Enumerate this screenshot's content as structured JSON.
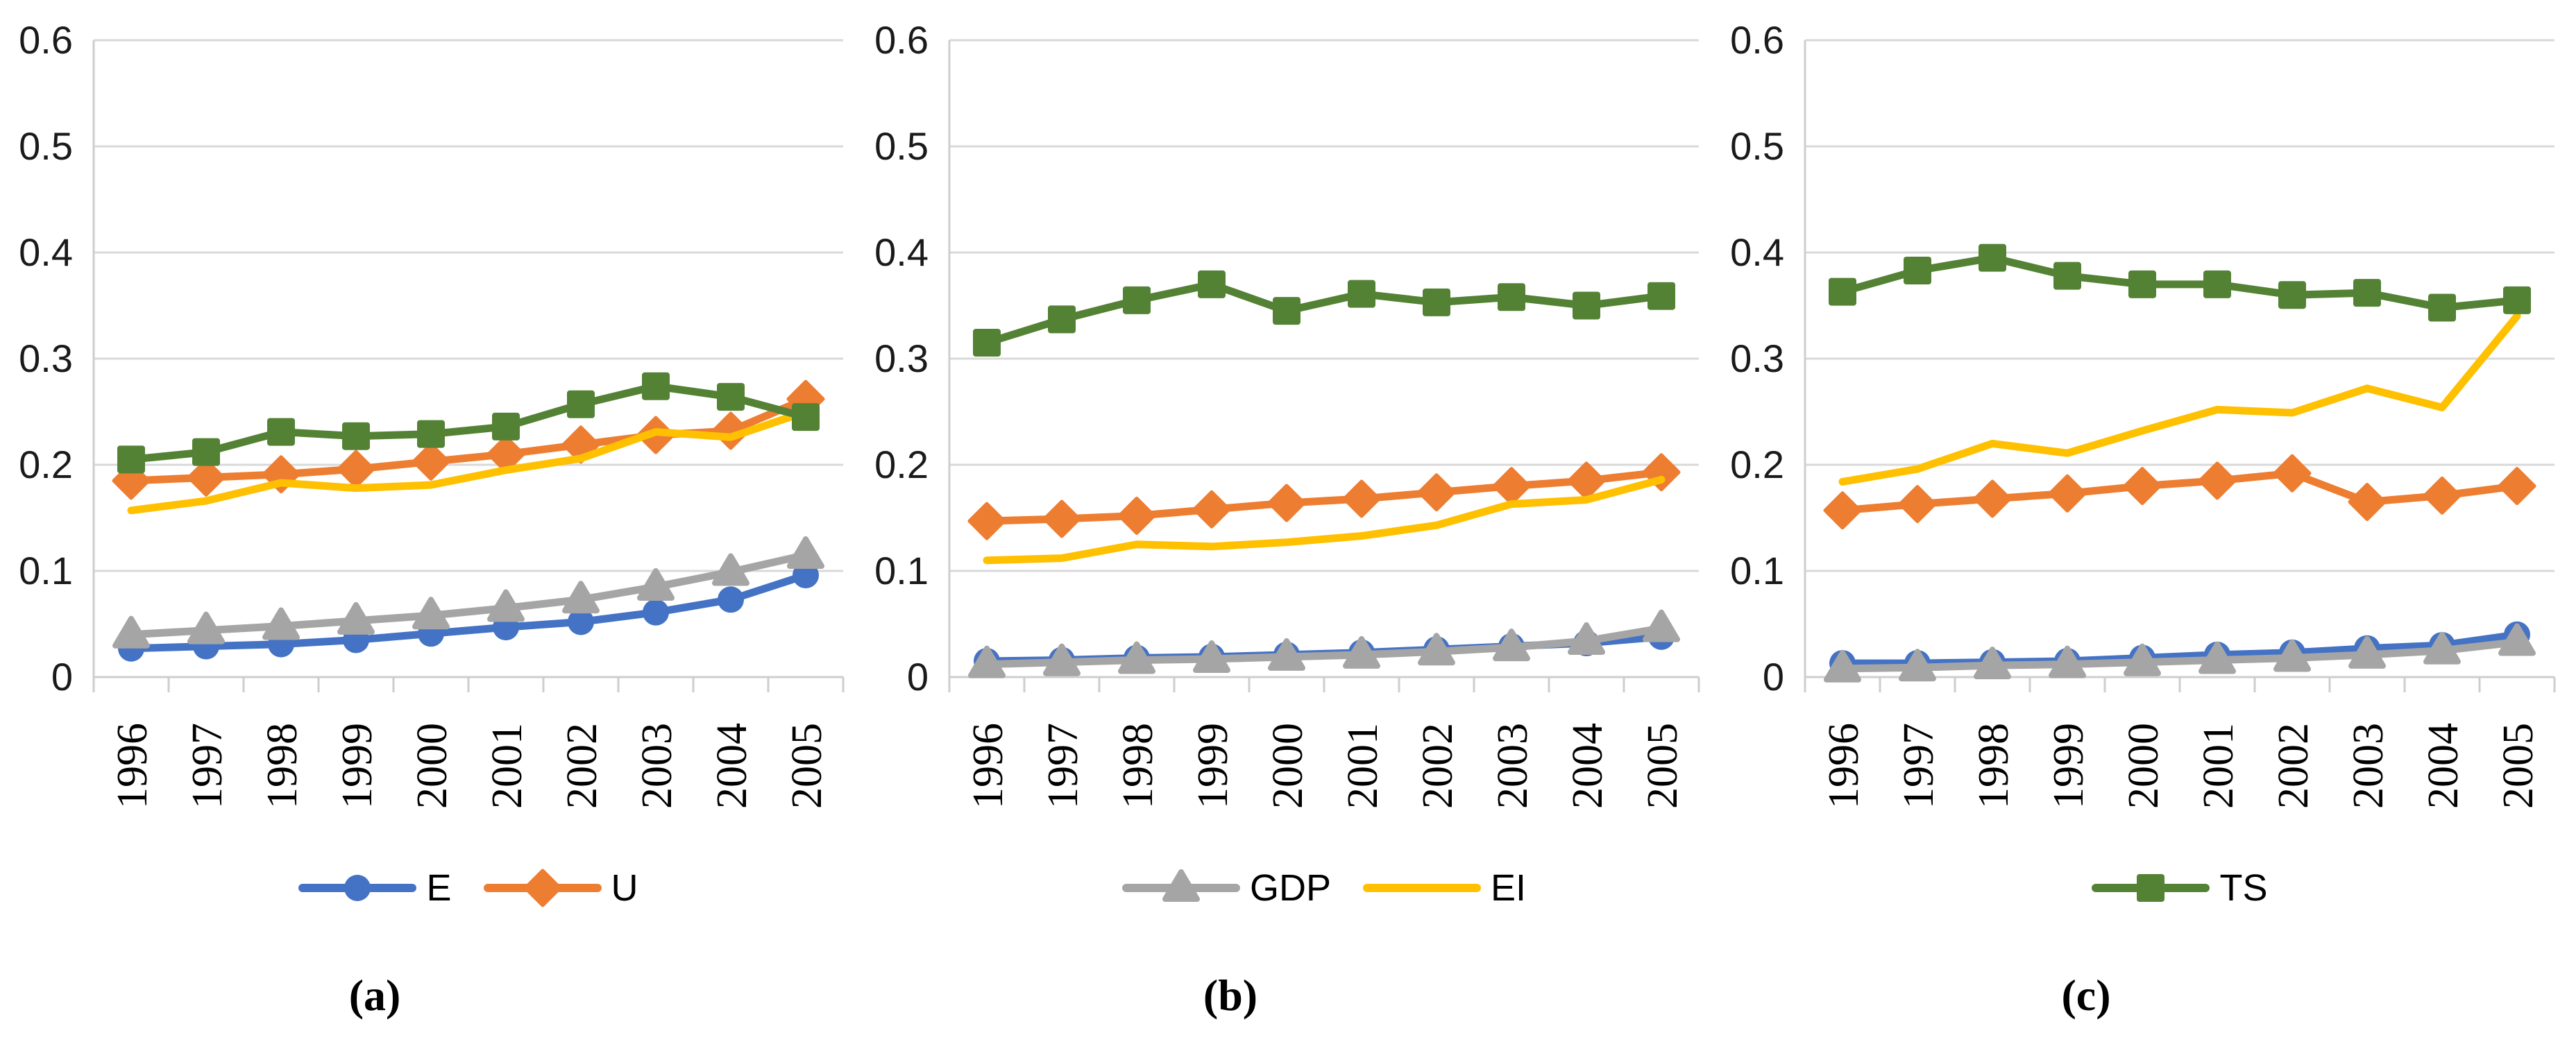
{
  "figure": {
    "background": "#ffffff",
    "gridline_color": "#d9d9d9",
    "axis_color": "#cfcdcd",
    "text_color": "#000000"
  },
  "chart_data": [
    {
      "type": "line",
      "panel_label": "(a)",
      "x": [
        1996,
        1997,
        1998,
        1999,
        2000,
        2001,
        2002,
        2003,
        2004,
        2005
      ],
      "ylim": [
        0,
        0.6
      ],
      "yticks": [
        0,
        0.1,
        0.2,
        0.3,
        0.4,
        0.5,
        0.6
      ],
      "ytick_labels": [
        "0",
        "0.1",
        "0.2",
        "0.3",
        "0.4",
        "0.5",
        "0.6"
      ],
      "grid": true,
      "legend_position": "bottom",
      "legend": [
        "E",
        "U"
      ],
      "series": [
        {
          "name": "E",
          "color": "#4472C4",
          "marker": "circle",
          "values": [
            0.027,
            0.029,
            0.031,
            0.035,
            0.041,
            0.047,
            0.052,
            0.061,
            0.073,
            0.096
          ]
        },
        {
          "name": "U",
          "color": "#ED7D31",
          "marker": "diamond",
          "values": [
            0.185,
            0.188,
            0.191,
            0.196,
            0.203,
            0.21,
            0.219,
            0.228,
            0.232,
            0.262
          ]
        },
        {
          "name": "GDP",
          "color": "#A5A5A5",
          "marker": "triangle",
          "values": [
            0.04,
            0.044,
            0.048,
            0.053,
            0.058,
            0.065,
            0.073,
            0.085,
            0.099,
            0.115
          ]
        },
        {
          "name": "EI",
          "color": "#FFC000",
          "marker": "none",
          "values": [
            0.157,
            0.166,
            0.183,
            0.178,
            0.181,
            0.195,
            0.206,
            0.231,
            0.226,
            0.25
          ]
        },
        {
          "name": "TS",
          "color": "#548235",
          "marker": "square",
          "values": [
            0.205,
            0.212,
            0.231,
            0.227,
            0.229,
            0.236,
            0.257,
            0.274,
            0.264,
            0.245
          ]
        }
      ]
    },
    {
      "type": "line",
      "panel_label": "(b)",
      "x": [
        1996,
        1997,
        1998,
        1999,
        2000,
        2001,
        2002,
        2003,
        2004,
        2005
      ],
      "ylim": [
        0,
        0.6
      ],
      "yticks": [
        0,
        0.1,
        0.2,
        0.3,
        0.4,
        0.5,
        0.6
      ],
      "ytick_labels": [
        "0",
        "0.1",
        "0.2",
        "0.3",
        "0.4",
        "0.5",
        "0.6"
      ],
      "grid": true,
      "legend_position": "bottom",
      "legend": [
        "GDP",
        "EI"
      ],
      "series": [
        {
          "name": "E",
          "color": "#4472C4",
          "marker": "circle",
          "values": [
            0.015,
            0.016,
            0.018,
            0.019,
            0.021,
            0.023,
            0.026,
            0.029,
            0.032,
            0.038
          ]
        },
        {
          "name": "U",
          "color": "#ED7D31",
          "marker": "diamond",
          "values": [
            0.147,
            0.149,
            0.152,
            0.158,
            0.164,
            0.168,
            0.174,
            0.18,
            0.185,
            0.193
          ]
        },
        {
          "name": "GDP",
          "color": "#A5A5A5",
          "marker": "triangle",
          "values": [
            0.012,
            0.014,
            0.016,
            0.017,
            0.019,
            0.021,
            0.024,
            0.028,
            0.034,
            0.046
          ]
        },
        {
          "name": "EI",
          "color": "#FFC000",
          "marker": "none",
          "values": [
            0.11,
            0.112,
            0.125,
            0.123,
            0.127,
            0.133,
            0.143,
            0.163,
            0.167,
            0.186
          ]
        },
        {
          "name": "TS",
          "color": "#548235",
          "marker": "square",
          "values": [
            0.315,
            0.337,
            0.355,
            0.37,
            0.345,
            0.361,
            0.353,
            0.358,
            0.35,
            0.359
          ]
        }
      ]
    },
    {
      "type": "line",
      "panel_label": "(c)",
      "x": [
        1996,
        1997,
        1998,
        1999,
        2000,
        2001,
        2002,
        2003,
        2004,
        2005
      ],
      "ylim": [
        0,
        0.6
      ],
      "yticks": [
        0,
        0.1,
        0.2,
        0.3,
        0.4,
        0.5,
        0.6
      ],
      "ytick_labels": [
        "0",
        "0.1",
        "0.2",
        "0.3",
        "0.4",
        "0.5",
        "0.6"
      ],
      "grid": true,
      "legend_position": "bottom",
      "legend": [
        "TS"
      ],
      "series": [
        {
          "name": "E",
          "color": "#4472C4",
          "marker": "circle",
          "values": [
            0.013,
            0.013,
            0.014,
            0.015,
            0.018,
            0.021,
            0.023,
            0.027,
            0.03,
            0.04
          ]
        },
        {
          "name": "U",
          "color": "#ED7D31",
          "marker": "diamond",
          "values": [
            0.157,
            0.163,
            0.168,
            0.173,
            0.18,
            0.185,
            0.192,
            0.165,
            0.171,
            0.18
          ]
        },
        {
          "name": "GDP",
          "color": "#A5A5A5",
          "marker": "triangle",
          "values": [
            0.008,
            0.009,
            0.011,
            0.012,
            0.014,
            0.016,
            0.018,
            0.021,
            0.025,
            0.033
          ]
        },
        {
          "name": "EI",
          "color": "#FFC000",
          "marker": "none",
          "values": [
            0.184,
            0.196,
            0.22,
            0.211,
            0.232,
            0.252,
            0.249,
            0.272,
            0.254,
            0.34
          ]
        },
        {
          "name": "TS",
          "color": "#548235",
          "marker": "square",
          "values": [
            0.363,
            0.383,
            0.395,
            0.378,
            0.37,
            0.37,
            0.36,
            0.362,
            0.348,
            0.355
          ]
        }
      ]
    }
  ]
}
